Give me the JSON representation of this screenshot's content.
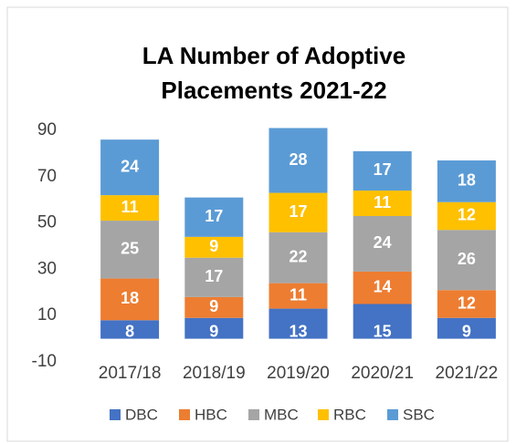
{
  "chart_data": {
    "type": "stacked_bar",
    "title": [
      "LA Number of Adoptive",
      "Placements 2021-22"
    ],
    "categories": [
      "2017/18",
      "2018/19",
      "2019/20",
      "2020/21",
      "2021/22"
    ],
    "series": [
      {
        "name": "DBC",
        "color": "#4472c4",
        "values": [
          8,
          9,
          13,
          15,
          9
        ]
      },
      {
        "name": "HBC",
        "color": "#ed7d31",
        "values": [
          18,
          9,
          11,
          14,
          12
        ]
      },
      {
        "name": "MBC",
        "color": "#a5a5a5",
        "values": [
          25,
          17,
          22,
          24,
          26
        ]
      },
      {
        "name": "RBC",
        "color": "#ffc000",
        "values": [
          11,
          9,
          17,
          11,
          12
        ]
      },
      {
        "name": "SBC",
        "color": "#5b9bd5",
        "values": [
          24,
          17,
          28,
          17,
          18
        ]
      }
    ],
    "ylim": [
      -10,
      90
    ],
    "yticks": [
      -10,
      10,
      30,
      50,
      70,
      90
    ],
    "grid": false,
    "legend": "bottom"
  }
}
